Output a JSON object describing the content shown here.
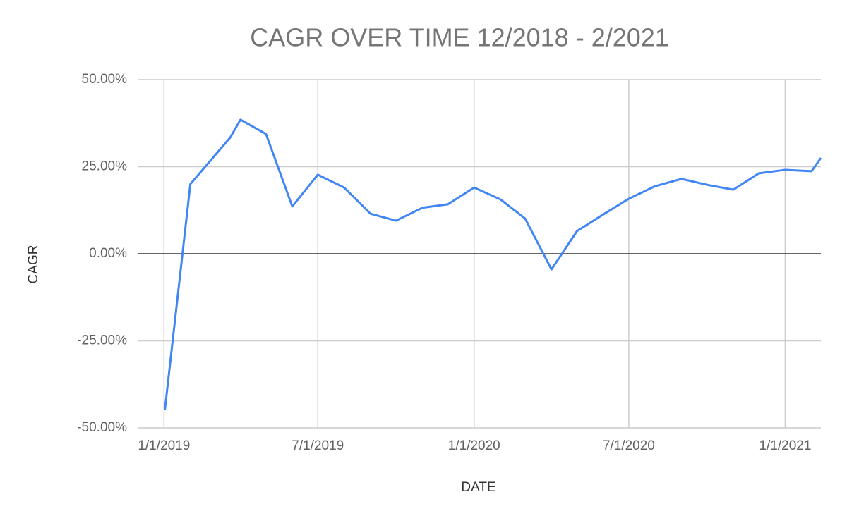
{
  "chart_data": {
    "type": "line",
    "title": "CAGR OVER TIME 12/2018 - 2/2021",
    "x_label": "DATE",
    "y_label": "CAGR",
    "x": [
      "1/2/2019",
      "2/1/2019",
      "3/20/2019",
      "4/1/2019",
      "5/1/2019",
      "6/1/2019",
      "7/1/2019",
      "8/1/2019",
      "9/1/2019",
      "10/1/2019",
      "11/1/2019",
      "12/1/2019",
      "1/1/2020",
      "2/1/2020",
      "3/1/2020",
      "4/1/2020",
      "5/1/2020",
      "6/1/2020",
      "7/1/2020",
      "8/1/2020",
      "9/1/2020",
      "10/1/2020",
      "11/1/2020",
      "12/1/2020",
      "1/1/2021",
      "2/1/2021",
      "2/12/2021"
    ],
    "series": [
      {
        "name": "CAGR",
        "color": "#4285f4",
        "values": [
          -44.9,
          20.0,
          33.4,
          38.5,
          34.4,
          13.6,
          22.7,
          19.0,
          11.5,
          9.5,
          13.2,
          14.2,
          19.0,
          15.6,
          10.1,
          -4.5,
          6.5,
          11.3,
          15.8,
          19.4,
          21.5,
          19.8,
          18.4,
          23.1,
          24.1,
          23.7,
          27.5
        ]
      }
    ],
    "xlim": [
      "12/1/2018",
      "2/12/2021"
    ],
    "xticks": [
      "1/1/2019",
      "7/1/2019",
      "1/1/2020",
      "7/1/2020",
      "1/1/2021"
    ],
    "ylim": [
      -50,
      50
    ],
    "yticks": [
      {
        "value": -50,
        "label": "-50.00%"
      },
      {
        "value": -25,
        "label": "-25.00%"
      },
      {
        "value": 0,
        "label": "0.00%"
      },
      {
        "value": 25,
        "label": "25.00%"
      },
      {
        "value": 50,
        "label": "50.00%"
      }
    ],
    "grid": true
  }
}
